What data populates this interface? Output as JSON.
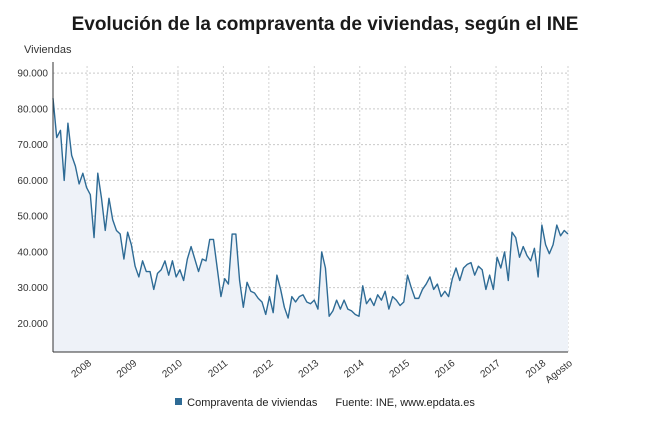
{
  "chart_data": {
    "type": "area",
    "title": "Evolución de la compraventa de viviendas, según el INE",
    "ylabel": "Viviendas",
    "ylim": [
      12000,
      92000
    ],
    "yticks": [
      20000,
      30000,
      40000,
      50000,
      60000,
      70000,
      80000,
      90000
    ],
    "ytick_labels": [
      "20.000",
      "30.000",
      "40.000",
      "50.000",
      "60.000",
      "70.000",
      "80.000",
      "90.000"
    ],
    "xticks": [
      "2008",
      "2009",
      "2010",
      "2011",
      "2012",
      "2013",
      "2014",
      "2015",
      "2016",
      "2017",
      "2018",
      "Agosto"
    ],
    "x_start": "2007-04",
    "x_end": "2018-08",
    "grid": true,
    "legend_position": "bottom",
    "series": [
      {
        "name": "Compraventa de viviendas",
        "color": "#2e6b95",
        "values": [
          83000,
          72000,
          74000,
          60000,
          76000,
          67000,
          64000,
          59000,
          62000,
          58000,
          56000,
          44000,
          62000,
          55000,
          46000,
          55000,
          49000,
          46000,
          45000,
          38000,
          45500,
          42000,
          36000,
          33000,
          37500,
          34500,
          34500,
          29500,
          34000,
          35000,
          37500,
          33500,
          37500,
          33000,
          35000,
          32000,
          38000,
          41500,
          38000,
          34500,
          38000,
          37500,
          43500,
          43500,
          35500,
          27500,
          32500,
          31000,
          45000,
          45000,
          32000,
          24500,
          31500,
          29000,
          28500,
          27000,
          26000,
          22500,
          27500,
          23000,
          33500,
          29500,
          24500,
          21500,
          27500,
          26000,
          27500,
          28000,
          26000,
          25500,
          26500,
          24000,
          40000,
          35500,
          22000,
          23500,
          26500,
          24000,
          26500,
          24000,
          23500,
          22500,
          22000,
          30500,
          25500,
          27000,
          25000,
          28000,
          26500,
          29000,
          24000,
          27500,
          26500,
          25000,
          26000,
          33500,
          30000,
          27000,
          27000,
          29500,
          31000,
          33000,
          29500,
          31000,
          27500,
          29000,
          27500,
          32500,
          35500,
          32000,
          35500,
          36500,
          37000,
          33500,
          36000,
          35000,
          29500,
          33500,
          29500,
          38500,
          35500,
          40000,
          32000,
          45500,
          44000,
          38500,
          41500,
          39000,
          37500,
          41000,
          33000,
          47500,
          42000,
          39500,
          42000,
          47500,
          44500,
          46000,
          45000
        ]
      }
    ]
  },
  "legend": {
    "series_label": "Compraventa de viviendas",
    "source": "Fuente: INE, www.epdata.es"
  }
}
